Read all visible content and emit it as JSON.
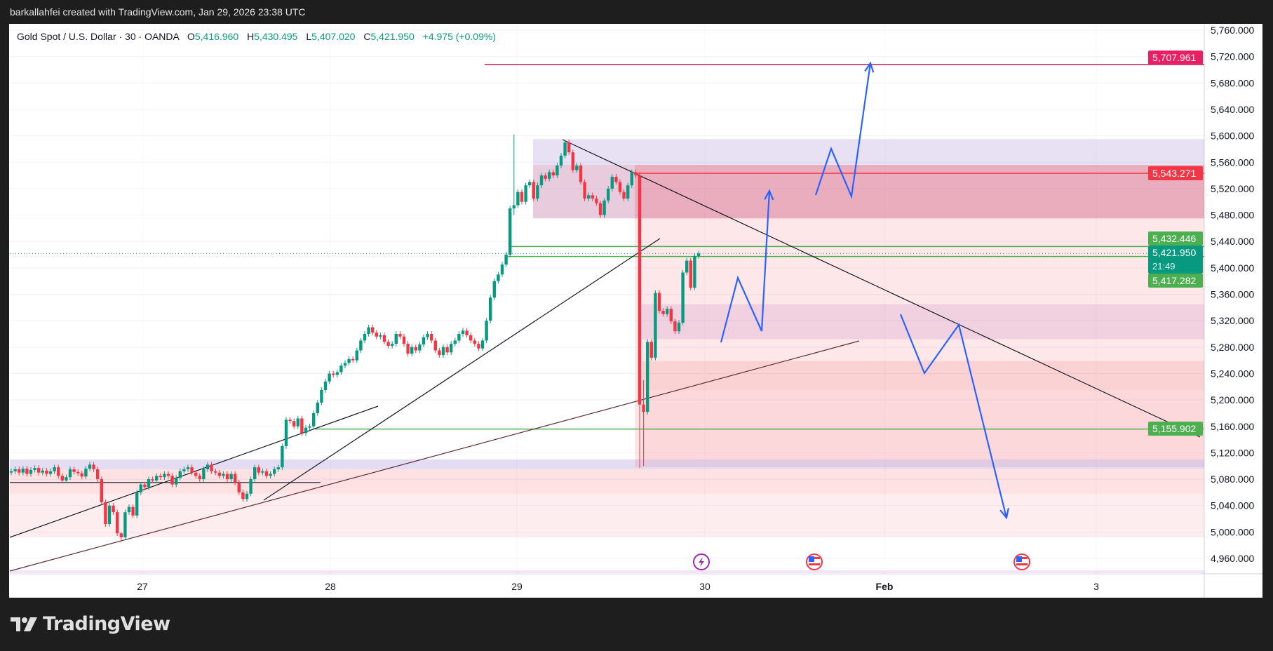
{
  "credit": "barkallahfei created with TradingView.com, Jan 29, 2026 23:38 UTC",
  "legend": {
    "symbol": "Gold Spot / U.S. Dollar · 30 · OANDA",
    "o_label": "O",
    "o": "5,416.960",
    "h_label": "H",
    "h": "5,430.495",
    "l_label": "L",
    "l": "5,407.020",
    "c_label": "C",
    "c": "5,421.950",
    "change": "+4.975 (+0.09%)"
  },
  "price_tags": [
    {
      "text": "5,707.961",
      "price": 5707.961,
      "color": "#e91e63"
    },
    {
      "text": "5,543.271",
      "price": 5543.271,
      "color": "#f23645"
    },
    {
      "text": "5,432.446",
      "price": 5432.446,
      "color": "#4caf50"
    },
    {
      "text": "5,421.950",
      "sub": "21:49",
      "price": 5421.95,
      "color": "#089981"
    },
    {
      "text": "5,417.282",
      "price": 5417.282,
      "color": "#4caf50"
    },
    {
      "text": "5,155.902",
      "price": 5155.902,
      "color": "#4caf50"
    }
  ],
  "logo": "TradingView",
  "colors": {
    "up": "#089981",
    "down": "#f23645",
    "arrows": "#2962ff"
  },
  "events": [
    "lightning-icon",
    "us-flag-icon",
    "us-flag-icon"
  ],
  "chart_data": {
    "type": "candlestick",
    "title": "Gold Spot / U.S. Dollar · 30 · OANDA",
    "timeframe": "30",
    "x_tick_labels": [
      "27",
      "28",
      "29",
      "30",
      "Feb",
      "3"
    ],
    "y_tick_labels": [
      "5,760.000",
      "5,720.000",
      "5,680.000",
      "5,640.000",
      "5,600.000",
      "5,560.000",
      "5,520.000",
      "5,480.000",
      "5,440.000",
      "5,400.000",
      "5,360.000",
      "5,320.000",
      "5,280.000",
      "5,240.000",
      "5,200.000",
      "5,160.000",
      "5,120.000",
      "5,080.000",
      "5,040.000",
      "5,000.000",
      "4,960.000"
    ],
    "ylim": [
      4960,
      5760
    ],
    "grid": true,
    "closes": [
      5092,
      5095,
      5090,
      5096,
      5088,
      5094,
      5097,
      5090,
      5093,
      5088,
      5092,
      5098,
      5085,
      5078,
      5083,
      5095,
      5091,
      5089,
      5084,
      5096,
      5102,
      5095,
      5080,
      5045,
      5012,
      5040,
      5030,
      4998,
      4992,
      5030,
      5038,
      5025,
      5060,
      5072,
      5068,
      5080,
      5078,
      5085,
      5083,
      5088,
      5085,
      5072,
      5082,
      5092,
      5095,
      5098,
      5090,
      5085,
      5080,
      5095,
      5102,
      5092,
      5090,
      5085,
      5088,
      5080,
      5088,
      5075,
      5060,
      5050,
      5058,
      5080,
      5098,
      5090,
      5092,
      5085,
      5088,
      5095,
      5098,
      5130,
      5170,
      5168,
      5160,
      5172,
      5150,
      5158,
      5160,
      5180,
      5196,
      5215,
      5228,
      5240,
      5238,
      5242,
      5252,
      5256,
      5262,
      5260,
      5275,
      5290,
      5300,
      5310,
      5302,
      5296,
      5298,
      5288,
      5282,
      5285,
      5300,
      5296,
      5285,
      5270,
      5280,
      5275,
      5284,
      5295,
      5300,
      5290,
      5275,
      5268,
      5280,
      5272,
      5285,
      5290,
      5300,
      5305,
      5298,
      5290,
      5285,
      5278,
      5290,
      5320,
      5355,
      5380,
      5390,
      5405,
      5420,
      5490,
      5495,
      5515,
      5500,
      5525,
      5530,
      5505,
      5525,
      5540,
      5535,
      5545,
      5540,
      5555,
      5570,
      5590,
      5575,
      5548,
      5555,
      5530,
      5505,
      5510,
      5505,
      5498,
      5480,
      5502,
      5520,
      5538,
      5530,
      5515,
      5505,
      5525,
      5545,
      5540,
      5193,
      5182,
      5288,
      5264,
      5362,
      5335,
      5330,
      5338,
      5319,
      5304,
      5317,
      5393,
      5411,
      5370,
      5418,
      5421.95
    ],
    "wicks": {
      "28": [
        5000,
        4985
      ],
      "128": [
        5602,
        5480
      ],
      "160": [
        5545,
        5097
      ],
      "161": [
        5230,
        5100
      ]
    },
    "horizontal_levels": [
      5707.961,
      5543.271,
      5432.446,
      5417.282,
      5155.902
    ],
    "last_price": 5421.95
  }
}
